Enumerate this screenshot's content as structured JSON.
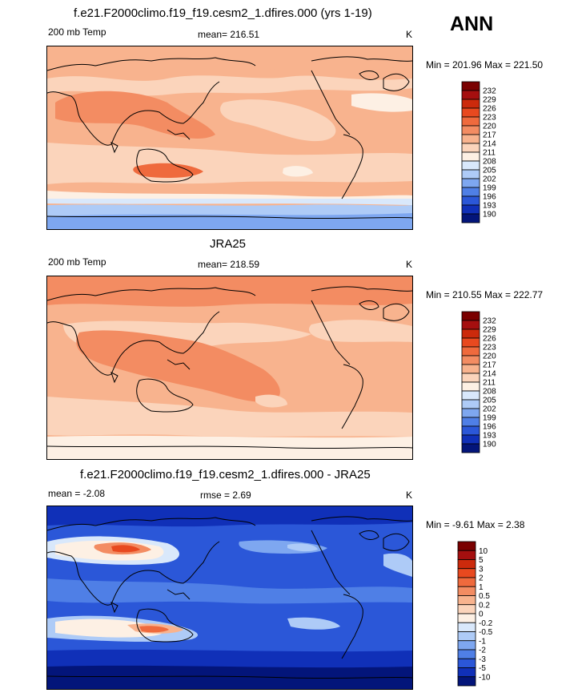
{
  "season": "ANN",
  "panels": [
    {
      "id": "model",
      "title": "f.e21.F2000climo.f19_f19.cesm2_1.dfires.000 (yrs 1-19)",
      "left_label": "200 mb Temp",
      "center_label": "mean= 216.51",
      "units": "K",
      "minmax": "Min = 201.96 Max = 221.50",
      "colorbar": {
        "labels": [
          "232",
          "229",
          "226",
          "223",
          "220",
          "217",
          "214",
          "211",
          "208",
          "205",
          "202",
          "199",
          "196",
          "193",
          "190"
        ],
        "colors": [
          "#7a0000",
          "#a50f0f",
          "#cc2a0c",
          "#e8491f",
          "#ef6a3d",
          "#f38c62",
          "#f8b38e",
          "#fbd4bb",
          "#fdf0e4",
          "#d9e8fb",
          "#aecbf7",
          "#7ea7f0",
          "#4f7fe6",
          "#2b57d8",
          "#1030b8",
          "#03157a"
        ]
      }
    },
    {
      "id": "obs",
      "title": "JRA25",
      "left_label": "200 mb Temp",
      "center_label": "mean= 218.59",
      "units": "K",
      "minmax": "Min = 210.55 Max = 222.77",
      "colorbar": {
        "labels": [
          "232",
          "229",
          "226",
          "223",
          "220",
          "217",
          "214",
          "211",
          "208",
          "205",
          "202",
          "199",
          "196",
          "193",
          "190"
        ],
        "colors": [
          "#7a0000",
          "#a50f0f",
          "#cc2a0c",
          "#e8491f",
          "#ef6a3d",
          "#f38c62",
          "#f8b38e",
          "#fbd4bb",
          "#fdf0e4",
          "#d9e8fb",
          "#aecbf7",
          "#7ea7f0",
          "#4f7fe6",
          "#2b57d8",
          "#1030b8",
          "#03157a"
        ]
      }
    },
    {
      "id": "diff",
      "title": "f.e21.F2000climo.f19_f19.cesm2_1.dfires.000 - JRA25",
      "left_label": "mean =  -2.08",
      "center_label": "rmse =   2.69",
      "units": "K",
      "minmax": "Min =  -9.61 Max =   2.38",
      "colorbar": {
        "labels": [
          "10",
          "5",
          "3",
          "2",
          "1",
          "0.5",
          "0.2",
          "0",
          "-0.2",
          "-0.5",
          "-1",
          "-2",
          "-3",
          "-5",
          "-10"
        ],
        "colors": [
          "#7a0000",
          "#a50f0f",
          "#cc2a0c",
          "#e8491f",
          "#ef6a3d",
          "#f38c62",
          "#f8b38e",
          "#fbd4bb",
          "#fdf0e4",
          "#d9e8fb",
          "#aecbf7",
          "#7ea7f0",
          "#4f7fe6",
          "#2b57d8",
          "#1030b8",
          "#03157a"
        ]
      }
    }
  ]
}
